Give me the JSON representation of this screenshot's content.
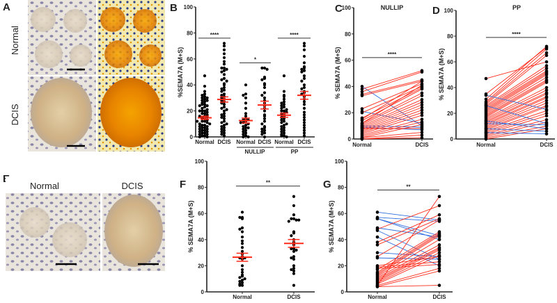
{
  "panel_letters": {
    "a": "A",
    "b": "B",
    "c": "C",
    "d": "D",
    "e": "E",
    "f": "F",
    "g": "G"
  },
  "panel_a": {
    "row_labels": [
      "Normal",
      "DCIS"
    ]
  },
  "panel_e": {
    "col_labels": [
      "Normal",
      "DCIS"
    ]
  },
  "colors": {
    "mean_bar": "#ff2a1a",
    "increase": "#ff2a1a",
    "decrease": "#2f6fe0",
    "dot": "#000000"
  },
  "chart_data": [
    {
      "id": "B",
      "type": "scatter",
      "title": "",
      "ylabel": "%SEMA7A (M+S)",
      "ylim": [
        0,
        100
      ],
      "yticks": [
        0,
        20,
        40,
        60,
        80,
        100
      ],
      "categories": [
        "Normal",
        "DCIS",
        "Normal",
        "DCIS",
        "Normal",
        "DCIS"
      ],
      "group_labels": [
        "NULLIP",
        "PP"
      ],
      "series": [
        {
          "name": "Normal",
          "mean": 14.7,
          "sem": 1.2,
          "values": [
            47,
            39,
            35,
            33,
            32,
            31,
            30,
            30,
            29,
            28,
            27,
            26,
            25,
            25,
            24,
            23,
            22,
            21,
            20,
            20,
            19,
            18,
            18,
            17,
            16,
            15,
            15,
            14,
            14,
            13,
            12,
            12,
            11,
            10,
            10,
            9,
            9,
            8,
            8,
            7,
            7,
            6,
            6,
            5,
            5,
            4,
            4,
            3,
            3,
            2,
            2,
            1,
            1,
            0,
            0,
            12,
            16,
            20,
            24,
            28
          ]
        },
        {
          "name": "DCIS",
          "mean": 28.8,
          "sem": 2.0,
          "values": [
            72,
            70,
            67,
            64,
            61,
            58,
            56,
            53,
            53,
            52,
            51,
            50,
            48,
            45,
            44,
            43,
            41,
            40,
            38,
            37,
            36,
            35,
            33,
            32,
            31,
            30,
            29,
            28,
            27,
            26,
            25,
            23,
            22,
            21,
            20,
            18,
            17,
            16,
            15,
            14,
            12,
            11,
            10,
            9,
            8,
            7,
            6,
            5,
            4,
            3,
            2,
            1
          ]
        },
        {
          "name": "NULLIP Normal",
          "mean": 12.6,
          "sem": 1.9,
          "values": [
            40,
            33,
            32,
            30,
            26,
            22,
            18,
            16,
            14,
            13,
            12,
            11,
            10,
            9,
            8,
            7,
            6,
            5,
            4,
            3,
            2,
            1,
            0,
            0,
            11,
            13,
            7
          ]
        },
        {
          "name": "NULLIP DCIS",
          "mean": 24.5,
          "sem": 3.0,
          "values": [
            53,
            53,
            52,
            46,
            45,
            44,
            41,
            40,
            38,
            34,
            32,
            30,
            28,
            26,
            24,
            22,
            20,
            17,
            16,
            14,
            12,
            10,
            8,
            7,
            6,
            5,
            4,
            3,
            2,
            0
          ]
        },
        {
          "name": "PP Normal",
          "mean": 16.7,
          "sem": 1.6,
          "values": [
            47,
            35,
            32,
            31,
            29,
            27,
            26,
            25,
            24,
            23,
            22,
            21,
            20,
            20,
            19,
            18,
            17,
            16,
            15,
            14,
            13,
            12,
            11,
            10,
            9,
            8,
            7,
            6,
            5,
            4,
            3,
            2,
            1,
            1,
            0
          ]
        },
        {
          "name": "PP DCIS",
          "mean": 32.0,
          "sem": 3.0,
          "values": [
            72,
            70,
            67,
            62,
            57,
            54,
            53,
            52,
            51,
            50,
            47,
            45,
            43,
            40,
            38,
            37,
            35,
            34,
            33,
            31,
            29,
            27,
            25,
            22,
            19,
            17,
            15,
            13,
            11,
            9,
            7,
            5,
            3,
            1
          ]
        }
      ],
      "significance": [
        {
          "from": 0,
          "to": 1,
          "y": 76,
          "label": "****"
        },
        {
          "from": 2,
          "to": 3,
          "y": 57,
          "label": "*"
        },
        {
          "from": 4,
          "to": 5,
          "y": 76,
          "label": "****"
        }
      ]
    },
    {
      "id": "C",
      "type": "line",
      "title": "NULLIP",
      "ylabel": "% SEMA7A (M+S)",
      "ylim": [
        0,
        100
      ],
      "yticks": [
        0,
        20,
        40,
        60,
        80,
        100
      ],
      "categories": [
        "Normal",
        "DCIS"
      ],
      "pairs": [
        [
          40,
          10
        ],
        [
          21,
          12
        ],
        [
          10,
          9
        ],
        [
          9,
          7
        ],
        [
          8,
          8
        ],
        [
          38,
          52
        ],
        [
          36,
          51
        ],
        [
          34,
          45
        ],
        [
          33,
          44
        ],
        [
          23,
          42
        ],
        [
          20,
          40
        ],
        [
          16,
          39
        ],
        [
          14,
          38
        ],
        [
          12,
          35
        ],
        [
          11,
          33
        ],
        [
          10,
          30
        ],
        [
          9,
          28
        ],
        [
          8,
          26
        ],
        [
          7,
          24
        ],
        [
          6,
          22
        ],
        [
          5,
          20
        ],
        [
          4,
          18
        ],
        [
          3,
          15
        ],
        [
          2,
          13
        ],
        [
          1,
          11
        ],
        [
          1,
          5
        ],
        [
          0,
          3
        ],
        [
          0,
          1
        ],
        [
          12,
          41
        ],
        [
          15,
          44
        ]
      ],
      "significance": [
        {
          "y": 62,
          "label": "****"
        }
      ]
    },
    {
      "id": "D",
      "type": "line",
      "title": "PP",
      "ylabel": "% SEMA7A (M+S)",
      "ylim": [
        0,
        100
      ],
      "yticks": [
        0,
        20,
        40,
        60,
        80,
        100
      ],
      "categories": [
        "Normal",
        "DCIS"
      ],
      "pairs": [
        [
          47,
          60
        ],
        [
          35,
          71
        ],
        [
          31,
          72
        ],
        [
          29,
          70
        ],
        [
          28,
          67
        ],
        [
          27,
          65
        ],
        [
          26,
          57
        ],
        [
          25,
          55
        ],
        [
          24,
          53
        ],
        [
          23,
          52
        ],
        [
          22,
          51
        ],
        [
          21,
          50
        ],
        [
          20,
          48
        ],
        [
          19,
          46
        ],
        [
          18,
          45
        ],
        [
          17,
          44
        ],
        [
          16,
          40
        ],
        [
          15,
          38
        ],
        [
          14,
          36
        ],
        [
          13,
          35
        ],
        [
          12,
          33
        ],
        [
          11,
          32
        ],
        [
          10,
          30
        ],
        [
          9,
          28
        ],
        [
          8,
          26
        ],
        [
          7,
          25
        ],
        [
          6,
          22
        ],
        [
          5,
          20
        ],
        [
          4,
          18
        ],
        [
          3,
          15
        ],
        [
          2,
          13
        ],
        [
          1,
          10
        ],
        [
          0,
          8
        ],
        [
          34,
          23
        ],
        [
          26,
          12
        ],
        [
          14,
          8
        ],
        [
          8,
          6
        ],
        [
          5,
          4
        ],
        [
          12,
          11
        ]
      ],
      "significance": [
        {
          "y": 79,
          "label": "****"
        }
      ]
    },
    {
      "id": "F",
      "type": "scatter",
      "title": "",
      "ylabel": "% SEMA7A (M+S)",
      "ylim": [
        0,
        100
      ],
      "yticks": [
        0,
        20,
        40,
        60,
        80,
        100
      ],
      "categories": [
        "Normal",
        "DCIS"
      ],
      "series": [
        {
          "name": "Normal",
          "mean": 26.5,
          "sem": 3.1,
          "values": [
            61,
            57,
            57,
            56,
            49,
            48,
            46,
            42,
            39,
            37,
            34,
            31,
            29,
            27,
            26,
            26,
            25,
            20,
            17,
            15,
            13,
            12,
            11,
            10,
            9,
            8,
            7,
            6,
            5,
            5
          ]
        },
        {
          "name": "DCIS",
          "mean": 37.1,
          "sem": 3.0,
          "values": [
            73,
            66,
            59,
            56,
            56,
            55,
            54,
            55,
            46,
            45,
            43,
            40,
            38,
            36,
            33,
            33,
            32,
            31,
            27,
            26,
            25,
            20,
            18,
            17,
            16,
            14,
            5
          ]
        }
      ],
      "significance": [
        {
          "from": 0,
          "to": 1,
          "y": 81,
          "label": "**"
        }
      ]
    },
    {
      "id": "G",
      "type": "line",
      "title": "",
      "ylabel": "% SEMA7A (M+S)",
      "ylim": [
        0,
        100
      ],
      "yticks": [
        0,
        20,
        40,
        60,
        80,
        100
      ],
      "categories": [
        "Normal",
        "DCIS"
      ],
      "pairs": [
        [
          61,
          55
        ],
        [
          57,
          54
        ],
        [
          56,
          43
        ],
        [
          49,
          42
        ],
        [
          47,
          25
        ],
        [
          30,
          27
        ],
        [
          26,
          25
        ],
        [
          56,
          40
        ],
        [
          42,
          20
        ],
        [
          5,
          73
        ],
        [
          48,
          66
        ],
        [
          38,
          59
        ],
        [
          36,
          56
        ],
        [
          27,
          55
        ],
        [
          17,
          46
        ],
        [
          15,
          45
        ],
        [
          14,
          44
        ],
        [
          13,
          43
        ],
        [
          12,
          40
        ],
        [
          11,
          36
        ],
        [
          10,
          34
        ],
        [
          9,
          33
        ],
        [
          8,
          32
        ],
        [
          7,
          30
        ],
        [
          6,
          28
        ],
        [
          20,
          27
        ],
        [
          19,
          23
        ],
        [
          18,
          21
        ],
        [
          5,
          18
        ],
        [
          4,
          16
        ],
        [
          4,
          5
        ]
      ],
      "significance": [
        {
          "y": 78,
          "label": "**"
        }
      ]
    }
  ]
}
